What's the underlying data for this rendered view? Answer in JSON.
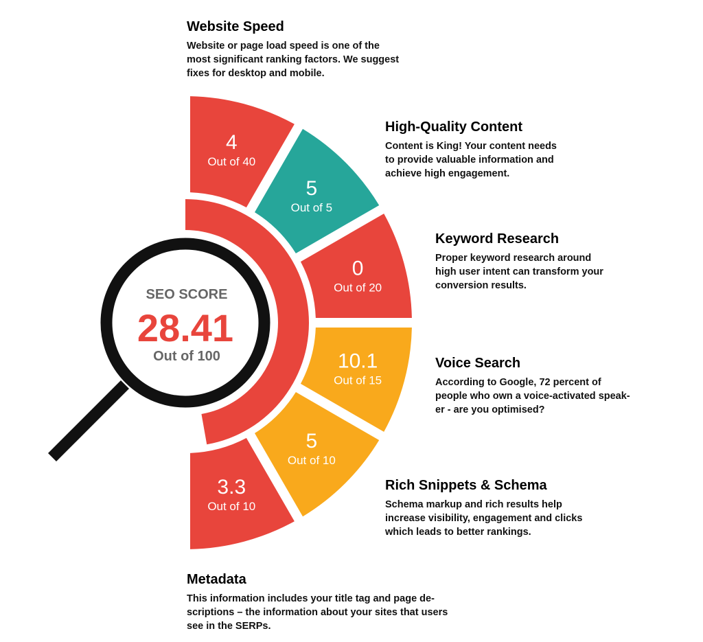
{
  "score": {
    "title": "SEO SCORE",
    "value": "28.41",
    "out_of": "Out of 100"
  },
  "colors": {
    "red": "#E8453C",
    "teal": "#26A69A",
    "orange": "#F9A91C",
    "black": "#111111"
  },
  "segments": [
    {
      "value": "4",
      "out_of": "Out of 40",
      "color": "red"
    },
    {
      "value": "5",
      "out_of": "Out of 5",
      "color": "teal"
    },
    {
      "value": "0",
      "out_of": "Out of 20",
      "color": "red"
    },
    {
      "value": "10.1",
      "out_of": "Out of 15",
      "color": "orange"
    },
    {
      "value": "5",
      "out_of": "Out of 10",
      "color": "orange"
    },
    {
      "value": "3.3",
      "out_of": "Out of 10",
      "color": "red"
    }
  ],
  "factors": [
    {
      "title": "Website Speed",
      "text": [
        "Website or page load speed is one of the",
        "most significant ranking factors. We suggest",
        "fixes for desktop and mobile."
      ]
    },
    {
      "title": "High-Quality Content",
      "text": [
        "Content is King! Your content needs",
        "to provide valuable information and",
        "achieve high engagement."
      ]
    },
    {
      "title": "Keyword Research",
      "text": [
        "Proper keyword research around",
        "high user intent can transform your",
        "conversion results."
      ]
    },
    {
      "title": "Voice Search",
      "text": [
        "According to Google, 72 percent of",
        "people who own a voice-activated speak-",
        "er - are you optimised?"
      ]
    },
    {
      "title": "Rich Snippets & Schema",
      "text": [
        "Schema markup and rich results help",
        "increase visibility, engagement and clicks",
        "which leads to better rankings."
      ]
    },
    {
      "title": "Metadata",
      "text": [
        "This information includes your title tag and page de-",
        "scriptions – the information about your sites that users",
        "see in the SERPs."
      ]
    }
  ]
}
